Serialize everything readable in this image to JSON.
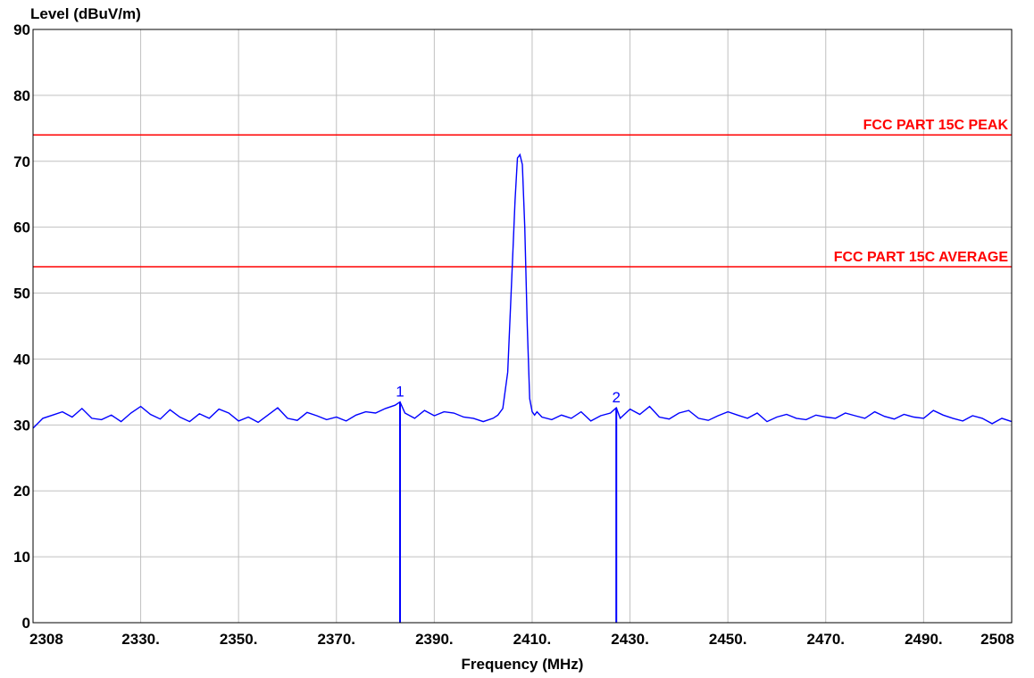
{
  "chart_data": {
    "type": "line",
    "ylabel": "Level (dBuV/m)",
    "xlabel": "Frequency (MHz)",
    "xlim": [
      2308,
      2508
    ],
    "ylim": [
      0,
      90
    ],
    "grid": true,
    "y_ticks": [
      0,
      10,
      20,
      30,
      40,
      50,
      60,
      70,
      80,
      90
    ],
    "x_ticks": [
      {
        "value": 2308,
        "label": "2308"
      },
      {
        "value": 2330,
        "label": "2330."
      },
      {
        "value": 2350,
        "label": "2350."
      },
      {
        "value": 2370,
        "label": "2370."
      },
      {
        "value": 2390,
        "label": "2390."
      },
      {
        "value": 2410,
        "label": "2410."
      },
      {
        "value": 2430,
        "label": "2430."
      },
      {
        "value": 2450,
        "label": "2450."
      },
      {
        "value": 2470,
        "label": "2470."
      },
      {
        "value": 2490,
        "label": "2490."
      },
      {
        "value": 2508,
        "label": "2508"
      }
    ],
    "limit_lines": [
      {
        "label": "FCC PART 15C PEAK",
        "value": 74,
        "color": "#ff0000"
      },
      {
        "label": "FCC PART 15C AVERAGE",
        "value": 54,
        "color": "#ff0000"
      }
    ],
    "markers": [
      {
        "label": "1",
        "x": 2383.0,
        "y": 33.5
      },
      {
        "label": "2",
        "x": 2427.2,
        "y": 32.6
      }
    ],
    "series": [
      {
        "color": "#0000ff",
        "x": [
          2308,
          2310,
          2312,
          2314,
          2316,
          2318,
          2320,
          2322,
          2324,
          2326,
          2328,
          2330,
          2332,
          2334,
          2336,
          2338,
          2340,
          2342,
          2344,
          2346,
          2348,
          2350,
          2352,
          2354,
          2356,
          2358,
          2360,
          2362,
          2364,
          2366,
          2368,
          2370,
          2372,
          2374,
          2376,
          2378,
          2380,
          2382,
          2383,
          2384,
          2386,
          2388,
          2390,
          2392,
          2394,
          2396,
          2398,
          2400,
          2402,
          2403,
          2404,
          2405,
          2406,
          2406.5,
          2407,
          2407.5,
          2408,
          2408.5,
          2409,
          2409.5,
          2410,
          2410.5,
          2411,
          2412,
          2414,
          2416,
          2418,
          2420,
          2422,
          2424,
          2426,
          2427.2,
          2428,
          2430,
          2432,
          2434,
          2436,
          2438,
          2440,
          2442,
          2444,
          2446,
          2448,
          2450,
          2452,
          2454,
          2456,
          2458,
          2460,
          2462,
          2464,
          2466,
          2468,
          2470,
          2472,
          2474,
          2476,
          2478,
          2480,
          2482,
          2484,
          2486,
          2488,
          2490,
          2492,
          2494,
          2496,
          2498,
          2500,
          2502,
          2504,
          2506,
          2508
        ],
        "y": [
          29.5,
          31.0,
          31.5,
          32.0,
          31.2,
          32.5,
          31.0,
          30.8,
          31.5,
          30.5,
          31.8,
          32.8,
          31.6,
          30.9,
          32.3,
          31.2,
          30.5,
          31.7,
          31.0,
          32.4,
          31.8,
          30.6,
          31.2,
          30.4,
          31.5,
          32.6,
          31.0,
          30.7,
          31.9,
          31.4,
          30.8,
          31.2,
          30.6,
          31.5,
          32.0,
          31.8,
          32.5,
          33.0,
          33.5,
          31.8,
          31.0,
          32.2,
          31.4,
          32.0,
          31.8,
          31.2,
          31.0,
          30.5,
          31.0,
          31.5,
          32.5,
          38.0,
          55.0,
          64.0,
          70.5,
          71.0,
          69.5,
          60.0,
          45.0,
          34.0,
          32.0,
          31.5,
          32.0,
          31.2,
          30.8,
          31.5,
          31.0,
          32.0,
          30.6,
          31.4,
          31.8,
          32.6,
          31.0,
          32.4,
          31.6,
          32.8,
          31.2,
          30.9,
          31.8,
          32.2,
          31.0,
          30.7,
          31.4,
          32.0,
          31.5,
          31.0,
          31.8,
          30.5,
          31.2,
          31.6,
          31.0,
          30.8,
          31.5,
          31.2,
          31.0,
          31.8,
          31.4,
          31.0,
          32.0,
          31.3,
          30.9,
          31.6,
          31.2,
          31.0,
          32.2,
          31.5,
          31.0,
          30.6,
          31.4,
          31.0,
          30.2,
          31.0,
          30.5
        ]
      }
    ]
  }
}
